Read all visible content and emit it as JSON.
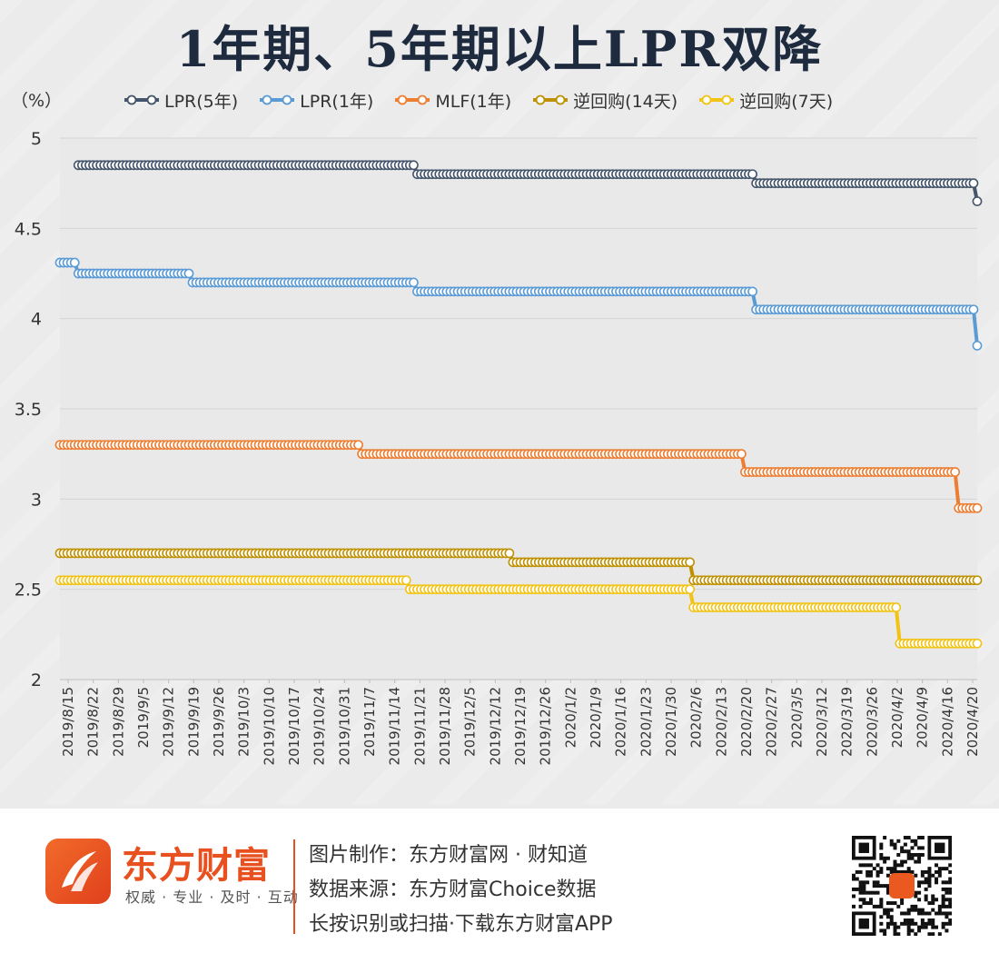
{
  "title": "1年期、5年期以上LPR双降",
  "unit_label": "（%）",
  "chart_data": {
    "type": "line",
    "title": "1年期、5年期以上LPR双降",
    "ylabel": "（%）",
    "ylim": [
      2,
      5
    ],
    "yticks": [
      "2",
      "2.5",
      "3",
      "3.5",
      "4",
      "4.5",
      "5"
    ],
    "grid": true,
    "legend_position": "top",
    "x_ticks": [
      "2019/8/15",
      "2019/8/22",
      "2019/8/29",
      "2019/9/5",
      "2019/9/12",
      "2019/9/19",
      "2019/9/26",
      "2019/10/3",
      "2019/10/10",
      "2019/10/17",
      "2019/10/24",
      "2019/10/31",
      "2019/11/7",
      "2019/11/14",
      "2019/11/21",
      "2019/11/28",
      "2019/12/5",
      "2019/12/12",
      "2019/12/19",
      "2019/12/26",
      "2020/1/2",
      "2020/1/9",
      "2020/1/16",
      "2020/1/23",
      "2020/1/30",
      "2020/2/6",
      "2020/2/13",
      "2020/2/20",
      "2020/2/27",
      "2020/3/5",
      "2020/3/12",
      "2020/3/19",
      "2020/3/26",
      "2020/4/2",
      "2020/4/9",
      "2020/4/16",
      "2020/4/20"
    ],
    "x_start": "2019/8/15",
    "x_end": "2020/4/20",
    "series": [
      {
        "name": "LPR(5年)",
        "color": "#44546a",
        "steps": [
          {
            "from": "2019/8/20",
            "value": 4.85
          },
          {
            "from": "2019/11/20",
            "value": 4.8
          },
          {
            "from": "2020/2/20",
            "value": 4.75
          },
          {
            "from": "2020/4/20",
            "value": 4.65
          }
        ]
      },
      {
        "name": "LPR(1年)",
        "color": "#5b9bd5",
        "steps": [
          {
            "from": "2019/8/15",
            "value": 4.31
          },
          {
            "from": "2019/8/20",
            "value": 4.25
          },
          {
            "from": "2019/9/20",
            "value": 4.2
          },
          {
            "from": "2019/11/20",
            "value": 4.15
          },
          {
            "from": "2020/2/20",
            "value": 4.05
          },
          {
            "from": "2020/4/20",
            "value": 3.85
          }
        ]
      },
      {
        "name": "MLF(1年)",
        "color": "#ed7d31",
        "steps": [
          {
            "from": "2019/8/15",
            "value": 3.3
          },
          {
            "from": "2019/11/5",
            "value": 3.25
          },
          {
            "from": "2020/2/17",
            "value": 3.15
          },
          {
            "from": "2020/4/15",
            "value": 2.95
          }
        ]
      },
      {
        "name": "逆回购(14天)",
        "color": "#bf9000",
        "steps": [
          {
            "from": "2019/8/15",
            "value": 2.7
          },
          {
            "from": "2019/12/16",
            "value": 2.65
          },
          {
            "from": "2020/2/3",
            "value": 2.55
          }
        ]
      },
      {
        "name": "逆回购(7天)",
        "color": "#f2c314",
        "steps": [
          {
            "from": "2019/8/15",
            "value": 2.55
          },
          {
            "from": "2019/11/18",
            "value": 2.5
          },
          {
            "from": "2020/2/3",
            "value": 2.4
          },
          {
            "from": "2020/3/30",
            "value": 2.2
          }
        ]
      }
    ]
  },
  "footer": {
    "brand_name": "东方财富",
    "brand_slogan": "权威 · 专业 · 及时 · 互动",
    "line1": "图片制作：东方财富网 · 财知道",
    "line2": "数据来源：东方财富Choice数据",
    "line3": "长按识别或扫描·下载东方财富APP"
  },
  "icons": {
    "logo": "eastmoney-logo-icon",
    "qr": "qr-code-icon"
  }
}
